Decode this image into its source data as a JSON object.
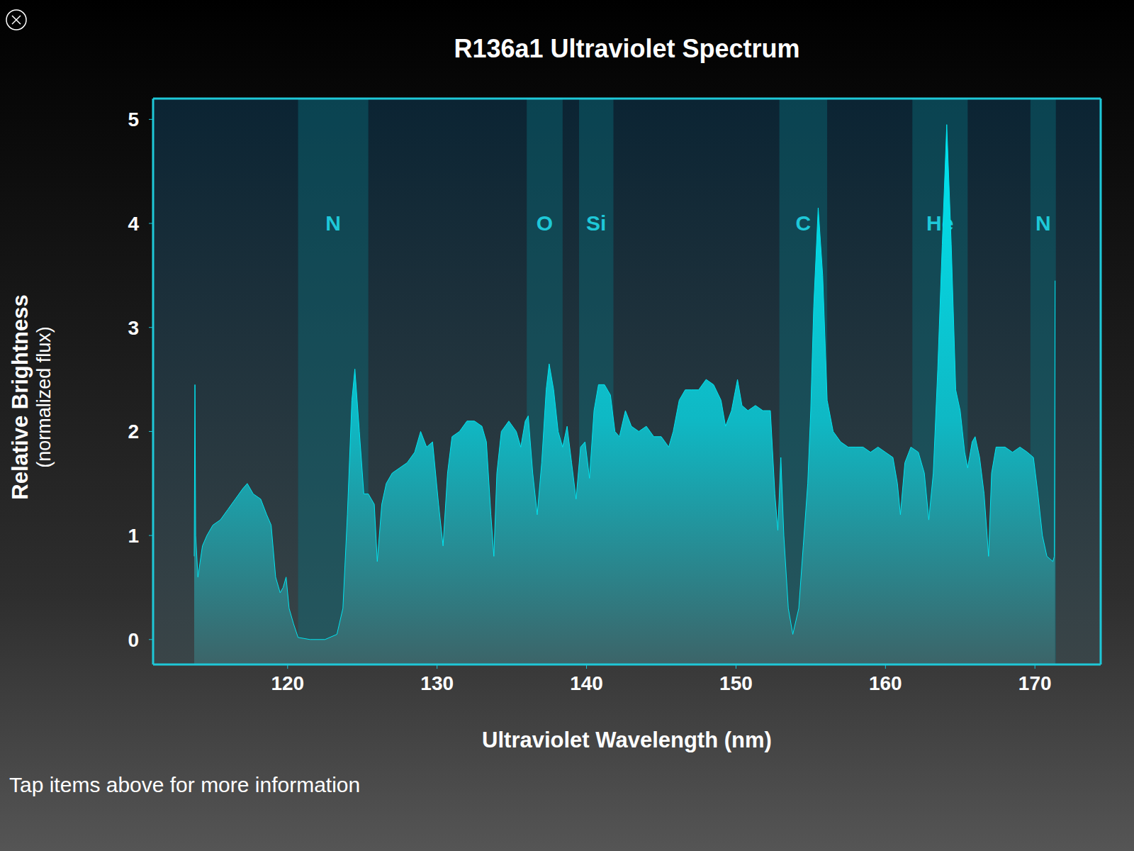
{
  "chart_data": {
    "type": "area",
    "title": "R136a1 Ultraviolet Spectrum",
    "x_label": "Ultraviolet Wavelength (nm)",
    "y_label": "Relative Brightness",
    "y_label_sub": "(normalized flux)",
    "note": "Tap items above for more information",
    "color": "#00e5f0",
    "grid": false,
    "xlim": [
      111,
      174.4
    ],
    "xticks": [
      120,
      130,
      140,
      150,
      160,
      170
    ],
    "ylim": [
      -0.24,
      5.2
    ],
    "yticks": [
      0,
      1,
      2,
      3,
      4,
      5
    ],
    "bands": [
      {
        "label": "N",
        "start": 120.7,
        "end": 125.4
      },
      {
        "label": "O",
        "start": 136.0,
        "end": 138.4
      },
      {
        "label": "Si",
        "start": 139.5,
        "end": 141.8
      },
      {
        "label": "C",
        "start": 152.9,
        "end": 156.1
      },
      {
        "label": "He",
        "start": 161.8,
        "end": 165.5
      },
      {
        "label": "N",
        "start": 169.7,
        "end": 171.4
      }
    ],
    "x": [
      113.75,
      113.8,
      113.85,
      114.0,
      114.3,
      114.6,
      115.0,
      115.5,
      116.0,
      116.5,
      117.0,
      117.3,
      117.7,
      118.2,
      118.6,
      118.9,
      119.2,
      119.5,
      119.7,
      119.9,
      120.1,
      120.4,
      120.7,
      121.5,
      122.5,
      123.3,
      123.7,
      124.0,
      124.3,
      124.5,
      124.8,
      125.1,
      125.4,
      125.8,
      126.0,
      126.3,
      126.6,
      127.0,
      127.5,
      128.0,
      128.5,
      128.9,
      129.3,
      129.7,
      130.1,
      130.4,
      130.7,
      131.0,
      131.5,
      132.0,
      132.5,
      133.0,
      133.3,
      133.6,
      133.8,
      134.0,
      134.3,
      134.8,
      135.3,
      135.6,
      135.9,
      136.1,
      136.4,
      136.7,
      137.0,
      137.3,
      137.5,
      137.8,
      138.1,
      138.4,
      138.7,
      139.0,
      139.3,
      139.6,
      139.9,
      140.2,
      140.5,
      140.8,
      141.2,
      141.6,
      141.9,
      142.2,
      142.6,
      143.0,
      143.5,
      144.0,
      144.5,
      145.0,
      145.5,
      145.8,
      146.2,
      146.6,
      147.0,
      147.5,
      148.0,
      148.5,
      149.0,
      149.3,
      149.7,
      150.1,
      150.4,
      150.8,
      151.3,
      151.8,
      152.3,
      152.6,
      152.8,
      153.0,
      153.2,
      153.5,
      153.8,
      154.2,
      154.5,
      154.8,
      155.0,
      155.2,
      155.5,
      155.8,
      156.1,
      156.5,
      157.0,
      157.5,
      158.0,
      158.5,
      159.0,
      159.5,
      160.0,
      160.5,
      160.8,
      161.0,
      161.3,
      161.7,
      162.2,
      162.6,
      162.9,
      163.2,
      163.5,
      163.8,
      164.1,
      164.4,
      164.7,
      165.0,
      165.3,
      165.5,
      165.8,
      166.0,
      166.3,
      166.6,
      166.9,
      167.1,
      167.4,
      168.0,
      168.5,
      169.0,
      169.5,
      169.9,
      170.2,
      170.5,
      170.8,
      171.2,
      171.3,
      171.35
    ],
    "values": [
      0.8,
      2.45,
      1.0,
      0.6,
      0.9,
      1.0,
      1.1,
      1.15,
      1.25,
      1.35,
      1.45,
      1.5,
      1.4,
      1.35,
      1.2,
      1.1,
      0.6,
      0.45,
      0.5,
      0.6,
      0.3,
      0.15,
      0.02,
      0.0,
      0.0,
      0.05,
      0.3,
      1.2,
      2.3,
      2.6,
      2.0,
      1.4,
      1.4,
      1.3,
      0.75,
      1.3,
      1.5,
      1.6,
      1.65,
      1.7,
      1.8,
      2.0,
      1.85,
      1.9,
      1.3,
      0.9,
      1.6,
      1.95,
      2.0,
      2.1,
      2.1,
      2.05,
      1.9,
      1.2,
      0.8,
      1.6,
      2.0,
      2.1,
      2.0,
      1.85,
      2.1,
      2.15,
      1.6,
      1.2,
      1.7,
      2.4,
      2.65,
      2.4,
      2.0,
      1.85,
      2.05,
      1.7,
      1.35,
      1.85,
      1.9,
      1.55,
      2.2,
      2.45,
      2.45,
      2.35,
      2.0,
      1.95,
      2.2,
      2.05,
      2.0,
      2.05,
      1.95,
      1.95,
      1.85,
      2.0,
      2.3,
      2.4,
      2.4,
      2.4,
      2.5,
      2.45,
      2.3,
      2.05,
      2.2,
      2.5,
      2.25,
      2.2,
      2.25,
      2.2,
      2.2,
      1.4,
      1.05,
      1.75,
      1.0,
      0.3,
      0.05,
      0.3,
      0.9,
      1.5,
      2.2,
      3.2,
      4.15,
      3.5,
      2.3,
      2.0,
      1.9,
      1.85,
      1.85,
      1.85,
      1.8,
      1.85,
      1.8,
      1.75,
      1.5,
      1.2,
      1.7,
      1.85,
      1.8,
      1.6,
      1.15,
      1.6,
      2.6,
      3.8,
      4.95,
      3.8,
      2.4,
      2.2,
      1.8,
      1.65,
      1.9,
      1.95,
      1.75,
      1.4,
      0.8,
      1.6,
      1.85,
      1.85,
      1.8,
      1.85,
      1.8,
      1.75,
      1.4,
      1.0,
      0.8,
      0.75,
      0.8,
      3.45
    ]
  }
}
